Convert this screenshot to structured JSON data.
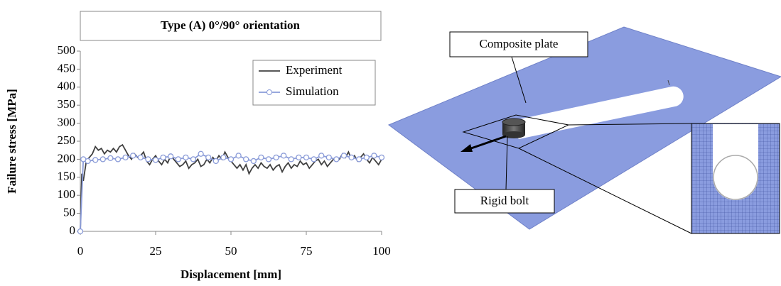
{
  "chart_data": {
    "type": "line",
    "title": "Type (A)  0°/90° orientation",
    "xlabel": "Displacement [mm]",
    "ylabel": "Failure stress [MPa]",
    "xlim": [
      0,
      100
    ],
    "xticks": [
      0,
      25,
      50,
      75,
      100
    ],
    "ylim": [
      0,
      500
    ],
    "yticks": [
      0,
      50,
      100,
      150,
      200,
      250,
      300,
      350,
      400,
      450,
      500
    ],
    "legend": "upper right",
    "series": [
      {
        "name": "Experiment",
        "color": "#404040",
        "marker": "none",
        "x": [
          0,
          0.5,
          1,
          2,
          3,
          4,
          5,
          6,
          7,
          8,
          9,
          10,
          11,
          12,
          13,
          14,
          15,
          16,
          17,
          18,
          19,
          20,
          21,
          22,
          23,
          24,
          25,
          26,
          27,
          28,
          29,
          30,
          31,
          32,
          33,
          34,
          35,
          36,
          37,
          38,
          39,
          40,
          41,
          42,
          43,
          44,
          45,
          46,
          47,
          48,
          49,
          50,
          51,
          52,
          53,
          54,
          55,
          56,
          57,
          58,
          59,
          60,
          61,
          62,
          63,
          64,
          65,
          66,
          67,
          68,
          69,
          70,
          71,
          72,
          73,
          74,
          75,
          76,
          77,
          78,
          79,
          80,
          81,
          82,
          83,
          84,
          85,
          86,
          87,
          88,
          89,
          90,
          91,
          92,
          93,
          94,
          95,
          96,
          97,
          98,
          99,
          100
        ],
        "values": [
          0,
          160,
          140,
          195,
          205,
          215,
          235,
          225,
          230,
          215,
          225,
          220,
          230,
          220,
          235,
          240,
          225,
          210,
          200,
          215,
          205,
          210,
          220,
          195,
          185,
          200,
          210,
          195,
          185,
          200,
          190,
          210,
          200,
          190,
          180,
          185,
          195,
          175,
          185,
          190,
          200,
          180,
          185,
          200,
          190,
          205,
          195,
          210,
          200,
          220,
          205,
          195,
          185,
          175,
          185,
          170,
          185,
          160,
          175,
          185,
          175,
          190,
          180,
          175,
          185,
          170,
          180,
          185,
          165,
          180,
          190,
          175,
          185,
          180,
          195,
          185,
          190,
          175,
          185,
          195,
          200,
          185,
          195,
          180,
          190,
          200,
          205,
          200,
          215,
          205,
          220,
          200,
          210,
          195,
          205,
          215,
          200,
          190,
          205,
          195,
          185,
          200
        ]
      },
      {
        "name": "Simulation",
        "color": "#8a9bd8",
        "marker": "circle",
        "x": [
          0,
          1,
          2.5,
          5,
          7.5,
          10,
          12.5,
          15,
          17.5,
          20,
          22.5,
          25,
          27.5,
          30,
          32.5,
          35,
          37.5,
          40,
          42.5,
          45,
          47.5,
          50,
          52.5,
          55,
          57.5,
          60,
          62.5,
          65,
          67.5,
          70,
          72.5,
          75,
          77.5,
          80,
          82.5,
          85,
          87.5,
          90,
          92.5,
          95,
          97.5,
          100
        ],
        "values": [
          0,
          200,
          195,
          198,
          200,
          203,
          200,
          205,
          210,
          205,
          200,
          198,
          205,
          208,
          200,
          205,
          200,
          215,
          205,
          195,
          205,
          200,
          210,
          200,
          195,
          205,
          200,
          205,
          210,
          200,
          205,
          205,
          200,
          210,
          205,
          200,
          210,
          205,
          200,
          205,
          210,
          205
        ]
      }
    ]
  },
  "diagram": {
    "labels": [
      "Composite plate",
      "Rigid bolt"
    ]
  }
}
